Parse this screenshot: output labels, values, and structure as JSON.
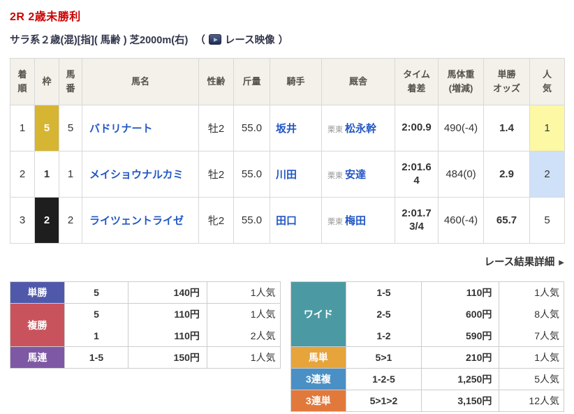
{
  "header": {
    "race_title": "2R 2歳未勝利",
    "race_conditions": "サラ系２歳(混)[指]( 馬齢 ) 芝2000m(右)",
    "paren_open": "（",
    "paren_close": "）",
    "video_link_label": "レース映像",
    "video_icon": "play-video-icon",
    "title_color": "#cc0000"
  },
  "results_table": {
    "columns": [
      {
        "l1": "着",
        "l2": "順"
      },
      {
        "l1": "枠",
        "l2": ""
      },
      {
        "l1": "馬",
        "l2": "番"
      },
      {
        "l1": "馬名",
        "l2": ""
      },
      {
        "l1": "性齢",
        "l2": ""
      },
      {
        "l1": "斤量",
        "l2": ""
      },
      {
        "l1": "騎手",
        "l2": ""
      },
      {
        "l1": "厩舎",
        "l2": ""
      },
      {
        "l1": "タイム",
        "l2": "着差"
      },
      {
        "l1": "馬体重",
        "l2": "(増減)"
      },
      {
        "l1": "単勝",
        "l2": "オッズ"
      },
      {
        "l1": "人",
        "l2": "気"
      }
    ],
    "rows": [
      {
        "finish": "1",
        "bracket": "5",
        "bracket_bg": "#d6b533",
        "bracket_text": "#ffffff",
        "number": "5",
        "horse": "バドリナート",
        "sex_age": "牡2",
        "weight": "55.0",
        "jockey": "坂井",
        "stable_area": "栗東",
        "stable": "松永幹",
        "time": "2:00.9",
        "margin": "",
        "body_weight": "490(-4)",
        "odds": "1.4",
        "favorite": "1",
        "favorite_bg": "#fcf8a4"
      },
      {
        "finish": "2",
        "bracket": "1",
        "bracket_bg": "#ffffff",
        "bracket_text": "#333333",
        "number": "1",
        "horse": "メイショウナルカミ",
        "sex_age": "牡2",
        "weight": "55.0",
        "jockey": "川田",
        "stable_area": "栗東",
        "stable": "安達",
        "time": "2:01.6",
        "margin": "4",
        "body_weight": "484(0)",
        "odds": "2.9",
        "favorite": "2",
        "favorite_bg": "#cfe1f8"
      },
      {
        "finish": "3",
        "bracket": "2",
        "bracket_bg": "#1e1e1e",
        "bracket_text": "#ffffff",
        "number": "2",
        "horse": "ライツェントライゼ",
        "sex_age": "牝2",
        "weight": "55.0",
        "jockey": "田口",
        "stable_area": "栗東",
        "stable": "梅田",
        "time": "2:01.7",
        "margin": "3/4",
        "body_weight": "460(-4)",
        "odds": "65.7",
        "favorite": "5",
        "favorite_bg": "#ffffff"
      }
    ]
  },
  "detail_link": {
    "label": "レース結果詳細",
    "arrow": "▶"
  },
  "payouts_left": [
    {
      "type": "単勝",
      "color": "#5059a9",
      "rows": [
        {
          "combo": "5",
          "payout": "140円",
          "pop": "1人気"
        }
      ]
    },
    {
      "type": "複勝",
      "color": "#c9535c",
      "rows": [
        {
          "combo": "5",
          "payout": "110円",
          "pop": "1人気"
        },
        {
          "combo": "1",
          "payout": "110円",
          "pop": "2人気"
        }
      ]
    },
    {
      "type": "馬連",
      "color": "#7e58a5",
      "rows": [
        {
          "combo": "1-5",
          "payout": "150円",
          "pop": "1人気"
        }
      ]
    }
  ],
  "payouts_right": [
    {
      "type": "ワイド",
      "color": "#4b9aa3",
      "rows": [
        {
          "combo": "1-5",
          "payout": "110円",
          "pop": "1人気"
        },
        {
          "combo": "2-5",
          "payout": "600円",
          "pop": "8人気"
        },
        {
          "combo": "1-2",
          "payout": "590円",
          "pop": "7人気"
        }
      ]
    },
    {
      "type": "馬単",
      "color": "#e6a43b",
      "rows": [
        {
          "combo": "5>1",
          "payout": "210円",
          "pop": "1人気"
        }
      ]
    },
    {
      "type": "3連複",
      "color": "#4b90c4",
      "rows": [
        {
          "combo": "1-2-5",
          "payout": "1,250円",
          "pop": "5人気"
        }
      ]
    },
    {
      "type": "3連単",
      "color": "#e2793c",
      "rows": [
        {
          "combo": "5>1>2",
          "payout": "3,150円",
          "pop": "12人気"
        }
      ]
    }
  ]
}
